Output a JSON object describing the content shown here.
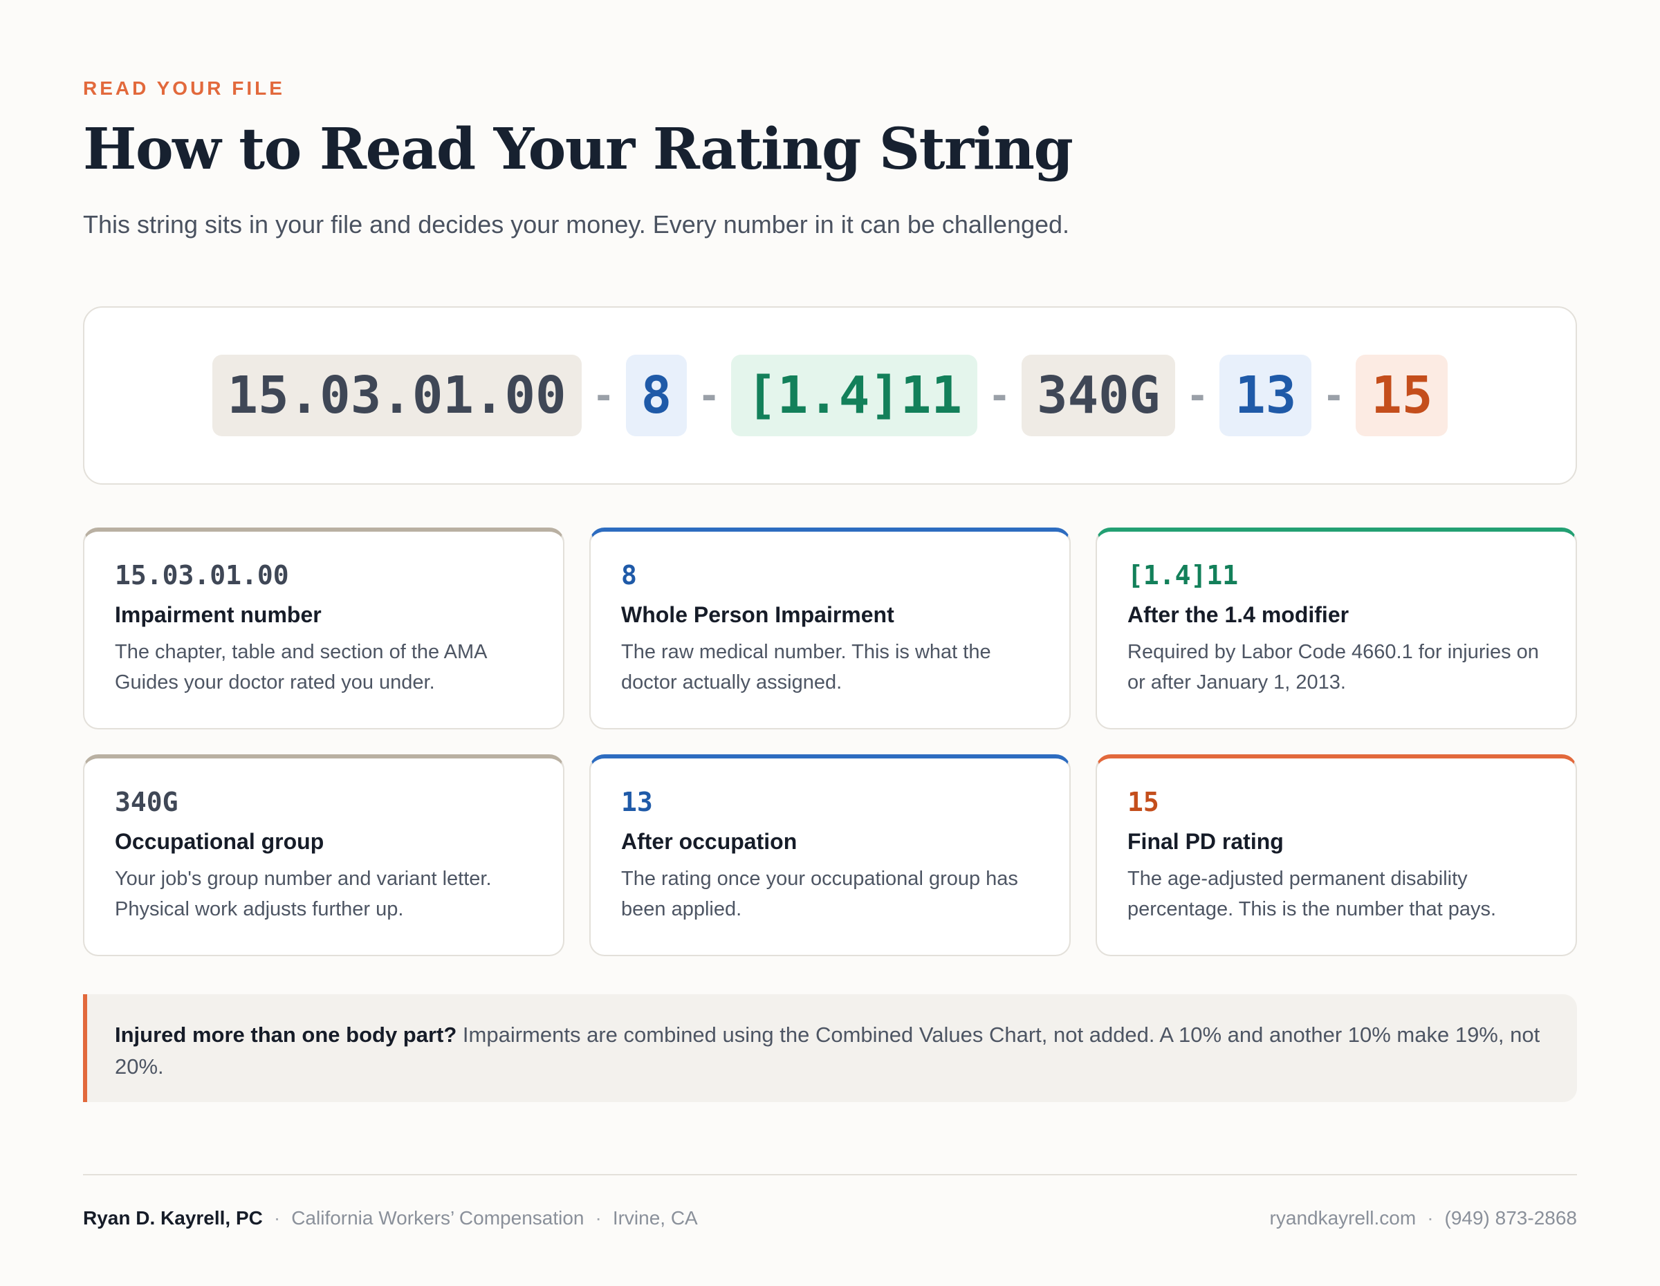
{
  "header": {
    "eyebrow": "READ YOUR FILE",
    "title": "How to Read Your Rating String",
    "subtitle": "This string sits in your file and decides your money. Every number in it can be challenged."
  },
  "rating_string": {
    "separator": "-",
    "parts": [
      {
        "text": "15.03.01.00",
        "color": "#3f4756",
        "background": "#efebe5"
      },
      {
        "text": "8",
        "color": "#1f5aa8",
        "background": "#e8f0fb"
      },
      {
        "text": "[1.4]11",
        "color": "#13805a",
        "background": "#e4f5ec"
      },
      {
        "text": "340G",
        "color": "#3f4756",
        "background": "#efebe5"
      },
      {
        "text": "13",
        "color": "#1f5aa8",
        "background": "#e8f0fb"
      },
      {
        "text": "15",
        "color": "#c44e1c",
        "background": "#fcebe3"
      }
    ]
  },
  "cards": [
    {
      "code": "15.03.01.00",
      "title": "Impairment number",
      "desc": "The chapter, table and section of the AMA Guides your doctor rated you under.",
      "accent": "#b9b0a2"
    },
    {
      "code": "8",
      "title": "Whole Person Impairment",
      "desc": "The raw medical number. This is what the doctor actually assigned.",
      "accent": "#2d6cc0"
    },
    {
      "code": "[1.4]11",
      "title": "After the 1.4 modifier",
      "desc": "Required by Labor Code 4660.1 for injuries on or after January 1, 2013.",
      "accent": "#23a073"
    },
    {
      "code": "340G",
      "title": "Occupational group",
      "desc": "Your job's group number and variant letter. Physical work adjusts further up.",
      "accent": "#b9b0a2"
    },
    {
      "code": "13",
      "title": "After occupation",
      "desc": "The rating once your occupational group has been applied.",
      "accent": "#2d6cc0"
    },
    {
      "code": "15",
      "title": "Final PD rating",
      "desc": "The age-adjusted permanent disability percentage. This is the number that pays.",
      "accent": "#e2693c"
    }
  ],
  "callout": {
    "strong": "Injured more than one body part?",
    "text": " Impairments are combined using the Combined Values Chart, not added. A 10% and another 10% make 19%, not 20%."
  },
  "footer": {
    "firm": "Ryan D. Kayrell, PC",
    "practice": "California Workers’ Compensation",
    "location": "Irvine, CA",
    "website": "ryandkayrell.com",
    "phone": "(949) 873-2868",
    "dot": "·"
  }
}
